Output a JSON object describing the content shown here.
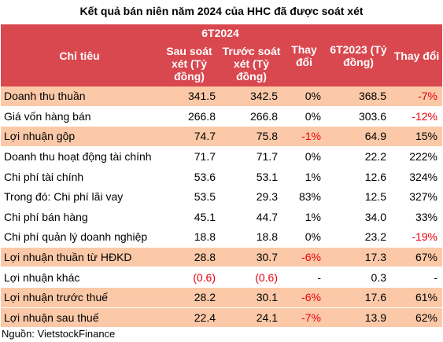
{
  "title": "Kết quả bán niên năm 2024 của HHC đã được soát xét",
  "header": {
    "label_col": "Chỉ tiêu",
    "group_6t2024": "6T2024",
    "col_after_audit": "Sau soát xét (Tỷ đồng)",
    "col_before_audit": "Trước soát xét (Tỷ đồng)",
    "col_change1": "Thay đổi",
    "col_6t2023": "6T2023 (Tỷ đồng)",
    "col_change2": "Thay đổi"
  },
  "colors": {
    "header_bg": "#d9474f",
    "highlight_bg": "#fbc9a8",
    "negative_text": "#e8000b"
  },
  "rows": [
    {
      "label": "Doanh thu thuần",
      "after": "341.5",
      "before": "342.5",
      "change1": "0%",
      "y2023": "368.5",
      "change2": "-7%",
      "highlight": true,
      "neg": [
        false,
        false,
        false,
        true
      ]
    },
    {
      "label": "Giá vốn hàng bán",
      "after": "266.8",
      "before": "266.8",
      "change1": "0%",
      "y2023": "303.6",
      "change2": "-12%",
      "highlight": false,
      "neg": [
        false,
        false,
        false,
        true
      ]
    },
    {
      "label": "Lợi nhuận gộp",
      "after": "74.7",
      "before": "75.8",
      "change1": "-1%",
      "y2023": "64.9",
      "change2": "15%",
      "highlight": true,
      "neg": [
        false,
        false,
        true,
        false
      ]
    },
    {
      "label": "Doanh thu hoạt động tài chính",
      "after": "71.7",
      "before": "71.7",
      "change1": "0%",
      "y2023": "22.2",
      "change2": "222%",
      "highlight": false,
      "neg": [
        false,
        false,
        false,
        false
      ]
    },
    {
      "label": "Chi phí tài chính",
      "after": "53.6",
      "before": "53.1",
      "change1": "1%",
      "y2023": "12.6",
      "change2": "324%",
      "highlight": false,
      "neg": [
        false,
        false,
        false,
        false
      ]
    },
    {
      "label": "Trong đó: Chi phí lãi vay",
      "after": "53.5",
      "before": "29.3",
      "change1": "83%",
      "y2023": "12.5",
      "change2": "327%",
      "highlight": false,
      "neg": [
        false,
        false,
        false,
        false
      ]
    },
    {
      "label": "Chi phí bán hàng",
      "after": "45.1",
      "before": "44.7",
      "change1": "1%",
      "y2023": "34.0",
      "change2": "33%",
      "highlight": false,
      "neg": [
        false,
        false,
        false,
        false
      ]
    },
    {
      "label": "Chi phí quản lý doanh nghiệp",
      "after": "18.8",
      "before": "18.8",
      "change1": "0%",
      "y2023": "23.2",
      "change2": "-19%",
      "highlight": false,
      "neg": [
        false,
        false,
        false,
        true
      ]
    },
    {
      "label": "Lợi nhuận thuần từ HĐKD",
      "after": "28.8",
      "before": "30.7",
      "change1": "-6%",
      "y2023": "17.3",
      "change2": "67%",
      "highlight": true,
      "neg": [
        false,
        false,
        true,
        false
      ]
    },
    {
      "label": "Lợi nhuận khác",
      "after": "(0.6)",
      "before": "(0.6)",
      "change1": "-",
      "y2023": "0.3",
      "change2": "-",
      "highlight": false,
      "neg": [
        true,
        true,
        false,
        false
      ]
    },
    {
      "label": "Lợi nhuận trước thuế",
      "after": "28.2",
      "before": "30.1",
      "change1": "-6%",
      "y2023": "17.6",
      "change2": "61%",
      "highlight": true,
      "neg": [
        false,
        false,
        true,
        false
      ]
    },
    {
      "label": "Lợi nhuận sau thuế",
      "after": "22.4",
      "before": "24.1",
      "change1": "-7%",
      "y2023": "13.9",
      "change2": "62%",
      "highlight": true,
      "neg": [
        false,
        false,
        true,
        false
      ]
    }
  ],
  "source": "Nguồn: VietstockFinance"
}
